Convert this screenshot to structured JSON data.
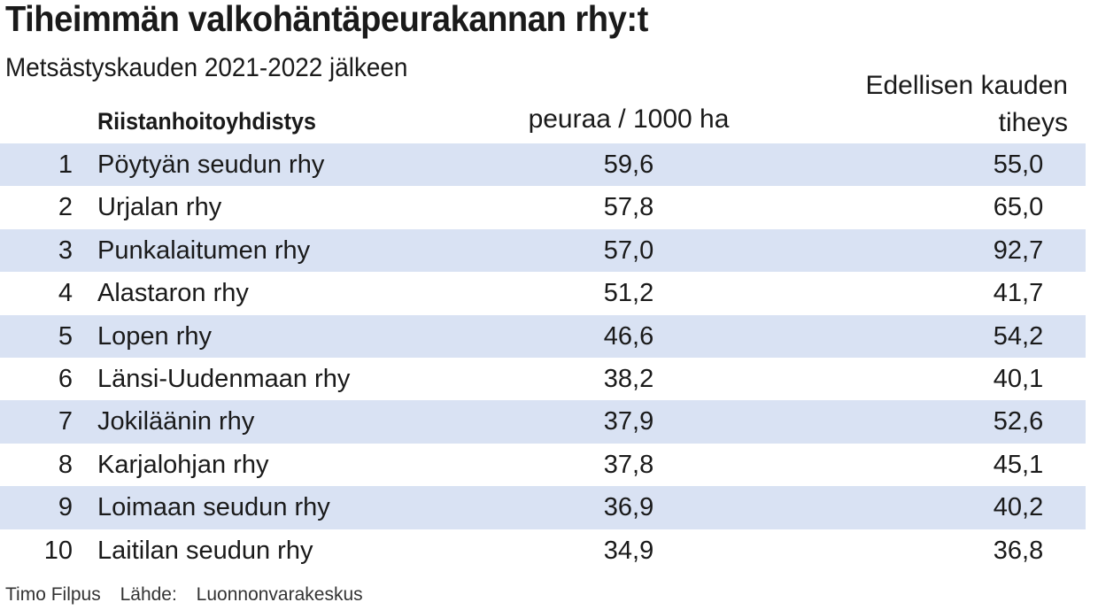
{
  "title": "Tiheimmän valkohäntäpeurakannan rhy:t",
  "subtitle": "Metsästyskauden 2021-2022 jälkeen",
  "headers": {
    "association": "Riistanhoitoyhdistys",
    "density": "peuraa / 1000 ha",
    "previous_line1": "Edellisen kauden",
    "previous_line2": "tiheys"
  },
  "footer": {
    "author": "Timo Filpus",
    "source_label": "Lähde:",
    "source": "Luonnonvarakeskus"
  },
  "chart_data": {
    "type": "table",
    "title": "Tiheimmän valkohäntäpeurakannan rhy:t",
    "subtitle": "Metsästyskauden 2021-2022 jälkeen",
    "columns": [
      "",
      "Riistanhoitoyhdistys",
      "peuraa / 1000 ha",
      "Edellisen kauden tiheys"
    ],
    "rows": [
      {
        "rank": "1",
        "name": "Pöytyän seudun rhy",
        "density": "59,6",
        "previous": "55,0"
      },
      {
        "rank": "2",
        "name": "Urjalan rhy",
        "density": "57,8",
        "previous": "65,0"
      },
      {
        "rank": "3",
        "name": "Punkalaitumen rhy",
        "density": "57,0",
        "previous": "92,7"
      },
      {
        "rank": "4",
        "name": "Alastaron rhy",
        "density": "51,2",
        "previous": "41,7"
      },
      {
        "rank": "5",
        "name": "Lopen rhy",
        "density": "46,6",
        "previous": "54,2"
      },
      {
        "rank": "6",
        "name": "Länsi-Uudenmaan rhy",
        "density": "38,2",
        "previous": "40,1"
      },
      {
        "rank": "7",
        "name": "Jokiläänin rhy",
        "density": "37,9",
        "previous": "52,6"
      },
      {
        "rank": "8",
        "name": "Karjalohjan rhy",
        "density": "37,8",
        "previous": "45,1"
      },
      {
        "rank": "9",
        "name": "Loimaan seudun rhy",
        "density": "36,9",
        "previous": "40,2"
      },
      {
        "rank": "10",
        "name": "Laitilan seudun rhy",
        "density": "34,9",
        "previous": "36,8"
      }
    ],
    "row_shading_color": "#d9e2f3"
  }
}
